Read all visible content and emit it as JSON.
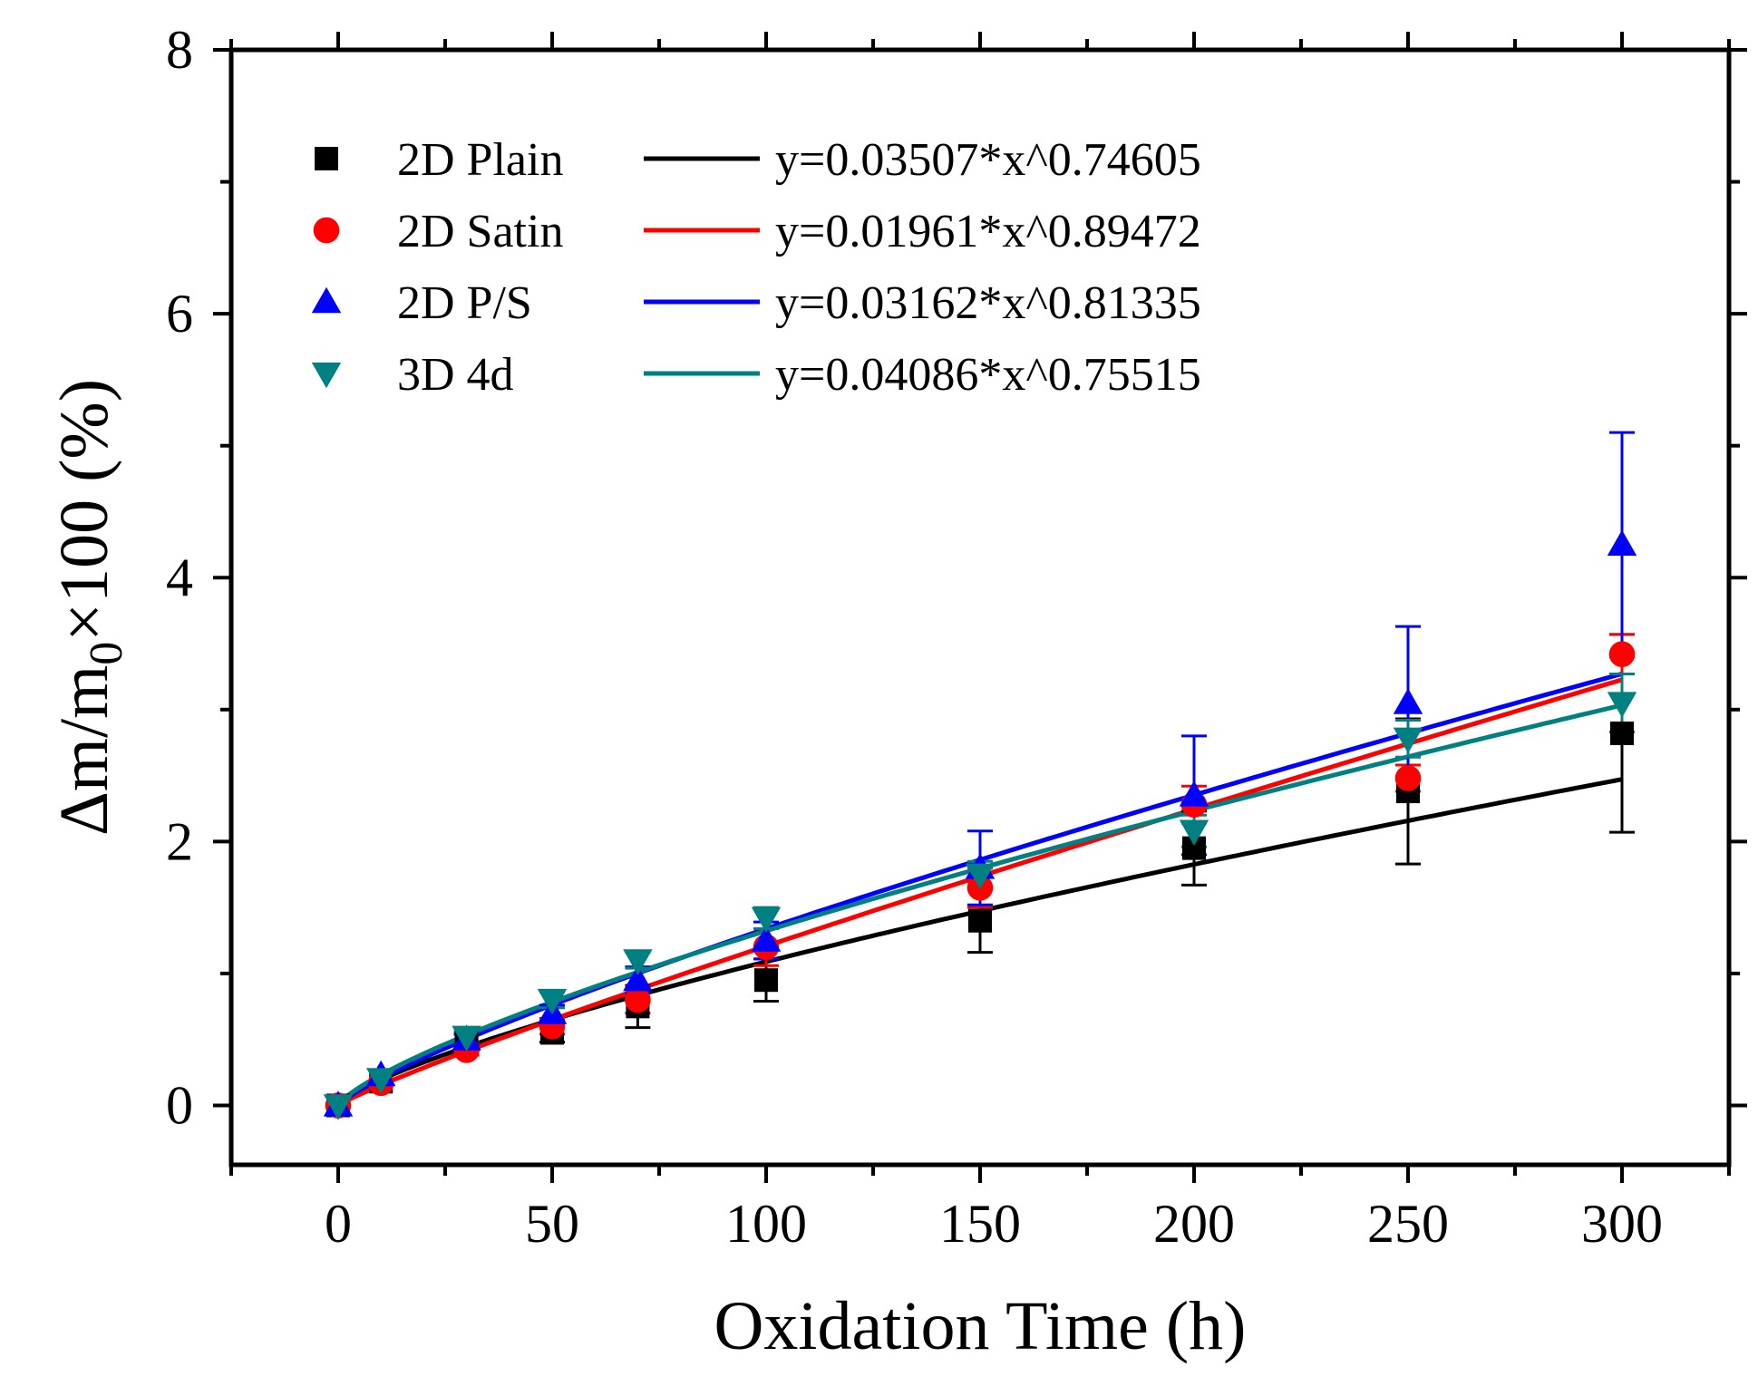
{
  "chart_data": {
    "type": "scatter",
    "title": "",
    "xlabel": "Oxidation Time (h)",
    "ylabel": {
      "main": "Δm/m",
      "subscript": "0",
      "suffix": "×100 (%)"
    },
    "xlim": [
      -25,
      325
    ],
    "ylim": [
      -0.45,
      8
    ],
    "xticks": [
      "0",
      "50",
      "100",
      "150",
      "200",
      "250",
      "300"
    ],
    "yticks": [
      "0",
      "2",
      "4",
      "6",
      "8"
    ],
    "legend_position": "top-left",
    "x": [
      0,
      10,
      30,
      50,
      70,
      100,
      150,
      200,
      250,
      300
    ],
    "series": [
      {
        "name": "2D Plain",
        "color": "#000000",
        "marker": "square",
        "fit": {
          "a": 0.03507,
          "b": 0.74605,
          "equation": "y=0.03507*x^0.74605"
        },
        "values": [
          0.0,
          0.18,
          0.5,
          0.55,
          0.75,
          0.95,
          1.4,
          1.95,
          2.38,
          2.82
        ],
        "errors": [
          0.02,
          0.03,
          0.04,
          0.07,
          0.16,
          0.16,
          0.24,
          0.28,
          0.55,
          0.75
        ]
      },
      {
        "name": "2D Satin",
        "color": "#ff0000",
        "marker": "circle",
        "fit": {
          "a": 0.01961,
          "b": 0.89472,
          "equation": "y=0.01961*x^0.89472"
        },
        "values": [
          0.0,
          0.17,
          0.42,
          0.6,
          0.8,
          1.2,
          1.65,
          2.28,
          2.48,
          3.42
        ],
        "errors": [
          0.02,
          0.03,
          0.04,
          0.06,
          0.1,
          0.14,
          0.15,
          0.14,
          0.1,
          0.15
        ]
      },
      {
        "name": "2D P/S",
        "color": "#0000ff",
        "marker": "triangle-up",
        "fit": {
          "a": 0.03162,
          "b": 0.81335,
          "equation": "y=0.03162*x^0.81335"
        },
        "values": [
          0.0,
          0.23,
          0.5,
          0.7,
          0.95,
          1.25,
          1.8,
          2.35,
          3.05,
          4.25
        ],
        "errors": [
          0.02,
          0.03,
          0.04,
          0.06,
          0.1,
          0.14,
          0.28,
          0.45,
          0.58,
          0.85
        ]
      },
      {
        "name": "3D 4d",
        "color": "#008080",
        "marker": "triangle-down",
        "fit": {
          "a": 0.04086,
          "b": 0.75515,
          "equation": "y=0.04086*x^0.75515"
        },
        "values": [
          0.0,
          0.2,
          0.52,
          0.8,
          1.1,
          1.42,
          1.75,
          2.08,
          2.78,
          3.05
        ],
        "errors": [
          0.02,
          0.03,
          0.04,
          0.06,
          0.06,
          0.08,
          0.1,
          0.12,
          0.14,
          0.22
        ]
      }
    ]
  }
}
